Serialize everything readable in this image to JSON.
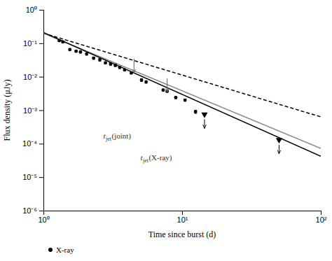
{
  "chart_data": {
    "type": "scatter",
    "title": "",
    "xlabel": "Time since burst (d)",
    "ylabel": "Flux density (μJy)",
    "log": true,
    "grid": false,
    "legend": "bottom",
    "xlim": [
      1,
      100
    ],
    "ylim": [
      1e-06,
      1
    ],
    "xticks": [
      {
        "value": 1,
        "label": "10⁰"
      },
      {
        "value": 10,
        "label": "10¹"
      },
      {
        "value": 100,
        "label": "10²"
      }
    ],
    "yticks": [
      {
        "value": 1e-06,
        "label": "10⁻⁶"
      },
      {
        "value": 1e-05,
        "label": "10⁻⁵"
      },
      {
        "value": 0.0001,
        "label": "10⁻⁴"
      },
      {
        "value": 0.001,
        "label": "10⁻³"
      },
      {
        "value": 0.01,
        "label": "10⁻²"
      },
      {
        "value": 0.1,
        "label": "10⁻¹"
      },
      {
        "value": 1,
        "label": "10⁰"
      }
    ],
    "series": [
      {
        "type": "line",
        "color": "#000000",
        "line_style": "dashed",
        "x": [
          1,
          100
        ],
        "values": [
          0.2,
          0.000632455532
        ]
      },
      {
        "type": "line",
        "color": "#888888",
        "line_style": "solid",
        "x": [
          1,
          100
        ],
        "values": [
          0.2,
          7.2615611e-05
        ]
      },
      {
        "type": "line",
        "color": "#000000",
        "line_style": "solid",
        "x": [
          1,
          100
        ],
        "values": [
          0.21,
          4.19005085e-05
        ]
      },
      {
        "type": "scatter",
        "name": "X-ray",
        "color": "#000000",
        "marker": "circle",
        "x": [
          1.3,
          1.38,
          1.55,
          1.72,
          1.85,
          2.05,
          2.3,
          2.55,
          2.8,
          3.05,
          3.3,
          3.55,
          3.85,
          4.3,
          5.1,
          5.5,
          7.3,
          7.8,
          9.0,
          10.5,
          12.5
        ],
        "values": [
          0.12,
          0.11,
          0.065,
          0.058,
          0.055,
          0.048,
          0.036,
          0.032,
          0.026,
          0.024,
          0.022,
          0.019,
          0.016,
          0.013,
          0.008,
          0.007,
          0.004,
          0.0037,
          0.0024,
          0.002,
          0.0009
        ],
        "error_up": [
          0.008,
          0.008,
          0.005,
          0.004,
          0.004,
          0.004,
          0.003,
          0.003,
          0.002,
          0.002,
          0.002,
          0.0015,
          0.0012,
          0.001,
          0.0008,
          0.0006,
          0.0003,
          0.0003,
          0.0002,
          0.00015,
          0.0001
        ],
        "error_down": [
          0.008,
          0.008,
          0.005,
          0.004,
          0.004,
          0.004,
          0.003,
          0.003,
          0.002,
          0.002,
          0.002,
          0.0015,
          0.0012,
          0.001,
          0.0008,
          0.0006,
          0.0003,
          0.0003,
          0.0002,
          0.00015,
          0.0001
        ]
      },
      {
        "type": "upper_limit",
        "color": "#000000",
        "marker": "triangle-down",
        "x": [
          14.5,
          50.0
        ],
        "values": [
          0.00075,
          0.00013
        ]
      }
    ],
    "annotations": [
      {
        "text": "t",
        "subscript": "jet",
        "text_after": "(joint)",
        "color": "#666666",
        "x": 4.5,
        "y_tip": 0.013,
        "y_base": 0.035,
        "label_x": 2.7,
        "label_y": 0.00022
      },
      {
        "text": "t",
        "subscript": "jet",
        "text_after": "(X-ray)",
        "color": "#666666",
        "x": 7.8,
        "y_tip": 0.0035,
        "y_base": 0.009,
        "label_x": 5.0,
        "label_y": 5e-05
      }
    ]
  }
}
